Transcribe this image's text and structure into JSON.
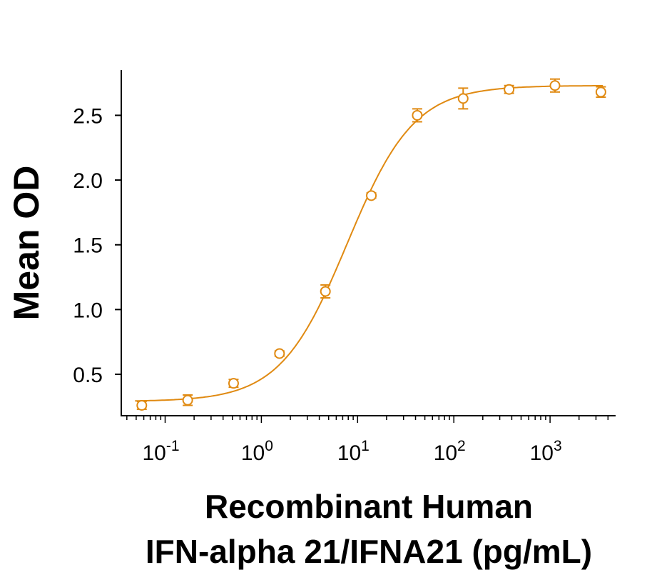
{
  "chart_data": {
    "type": "scatter",
    "title": "",
    "xlabel_lines": [
      "Recombinant Human",
      "IFN-alpha 21/IFNA21 (pg/mL)"
    ],
    "ylabel": "Mean OD",
    "x_scale": "log10",
    "xlim": [
      0.035,
      4800
    ],
    "ylim": [
      0.18,
      2.85
    ],
    "y_ticks": [
      0.5,
      1.0,
      1.5,
      2.0,
      2.5
    ],
    "y_tick_labels": [
      "0.5",
      "1.0",
      "1.5",
      "2.0",
      "2.5"
    ],
    "x_ticks": [
      {
        "value": 0.1,
        "base": "10",
        "exp": "-1"
      },
      {
        "value": 1,
        "base": "10",
        "exp": "0"
      },
      {
        "value": 10,
        "base": "10",
        "exp": "1"
      },
      {
        "value": 100,
        "base": "10",
        "exp": "2"
      },
      {
        "value": 1000,
        "base": "10",
        "exp": "3"
      }
    ],
    "color": "#E08A12",
    "series": [
      {
        "x": [
          0.0572,
          0.1715,
          0.5144,
          1.543,
          4.63,
          13.89,
          41.67,
          125,
          375,
          1125,
          3375
        ],
        "y": [
          0.26,
          0.3,
          0.43,
          0.66,
          1.14,
          1.88,
          2.5,
          2.63,
          2.7,
          2.73,
          2.68
        ],
        "err": [
          0.03,
          0.04,
          0.03,
          0.02,
          0.05,
          0.02,
          0.05,
          0.08,
          0.03,
          0.05,
          0.04
        ]
      }
    ],
    "fit": {
      "model": "4PL",
      "bottom": 0.29,
      "top": 2.73,
      "ec50": 7.8,
      "hill": 1.25
    }
  }
}
